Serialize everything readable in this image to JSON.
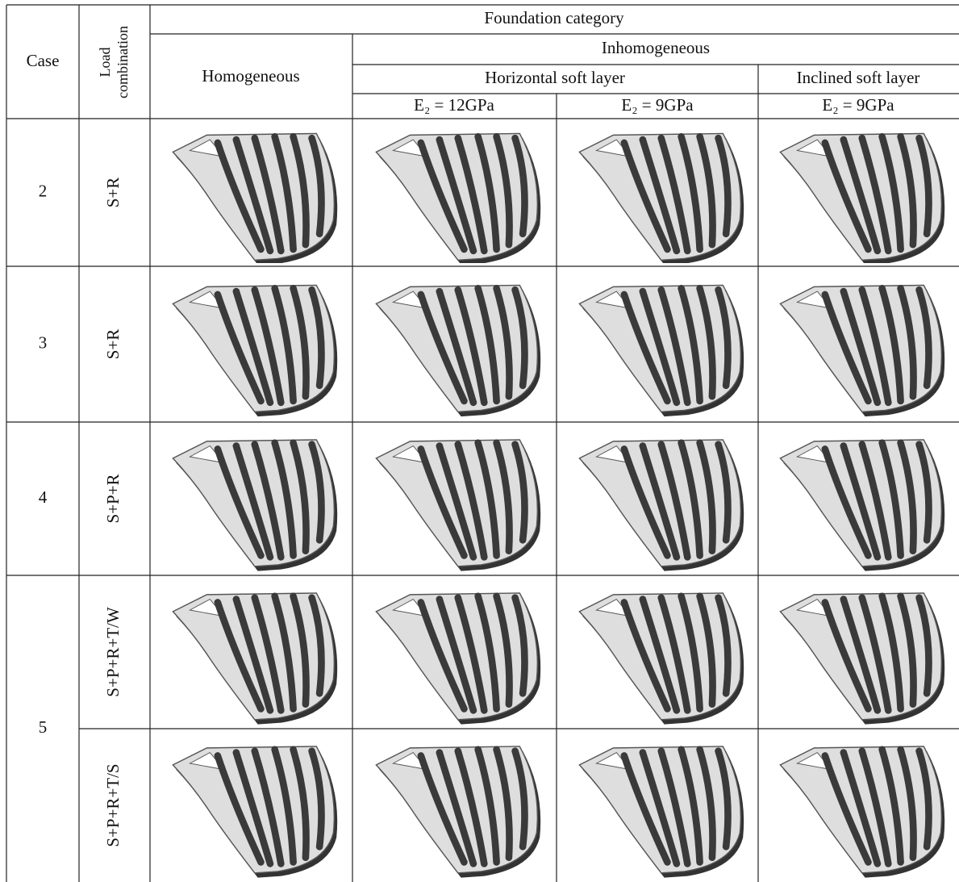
{
  "table": {
    "header": {
      "case": "Case",
      "load_combination": [
        "Load",
        "combination"
      ],
      "foundation_category": "Foundation category",
      "homogeneous": "Homogeneous",
      "inhomogeneous": "Inhomogeneous",
      "horizontal": "Horizontal soft layer",
      "inclined": "Inclined soft layer",
      "columns": [
        "E₂ = 12GPa",
        "E₂ = 9GPa",
        "E₂ = 9GPa"
      ]
    },
    "cases": [
      {
        "case": "2",
        "loads": [
          "S+R"
        ]
      },
      {
        "case": "3",
        "loads": [
          "S+R"
        ]
      },
      {
        "case": "4",
        "loads": [
          "S+P+R"
        ]
      },
      {
        "case": "5",
        "loads": [
          "S+P+R+T/W",
          "S+P+R+T/S"
        ]
      }
    ]
  }
}
